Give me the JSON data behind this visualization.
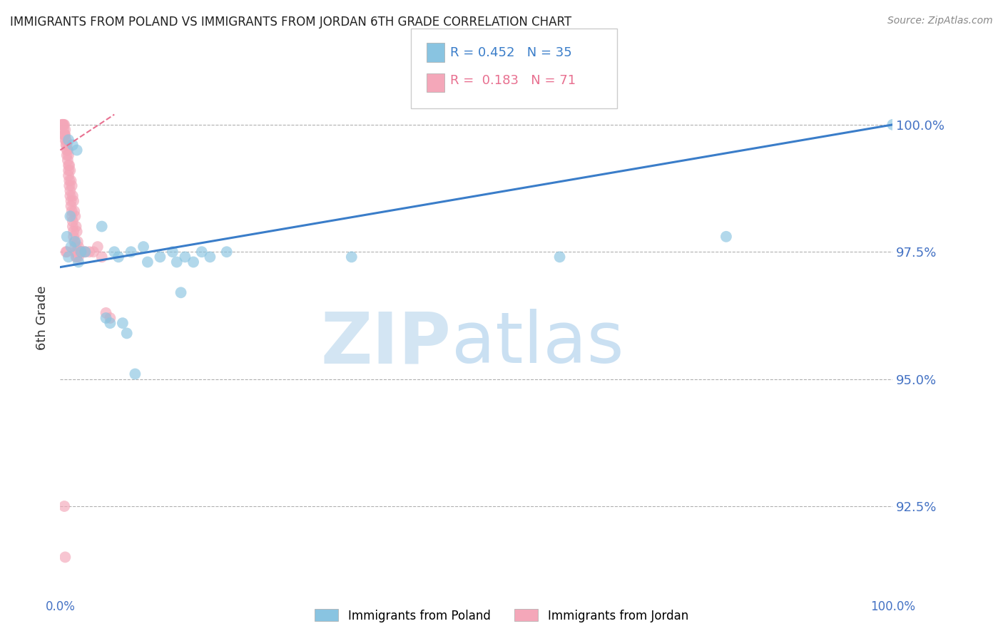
{
  "title": "IMMIGRANTS FROM POLAND VS IMMIGRANTS FROM JORDAN 6TH GRADE CORRELATION CHART",
  "source": "Source: ZipAtlas.com",
  "ylabel": "6th Grade",
  "ytick_labels": [
    "92.5%",
    "95.0%",
    "97.5%",
    "100.0%"
  ],
  "ytick_values": [
    92.5,
    95.0,
    97.5,
    100.0
  ],
  "xmin": 0.0,
  "xmax": 100.0,
  "ymin": 91.2,
  "ymax": 101.2,
  "blue_color": "#89c4e1",
  "pink_color": "#f4a7b9",
  "blue_line_color": "#3a7dc9",
  "pink_line_color": "#e87090",
  "axis_color": "#4472c4",
  "title_color": "#222222",
  "blue_scatter_x": [
    1.0,
    1.5,
    2.0,
    1.2,
    0.8,
    1.8,
    1.3,
    2.5,
    3.0,
    5.0,
    6.5,
    7.0,
    8.5,
    10.0,
    12.0,
    13.5,
    14.0,
    15.0,
    17.0,
    20.0,
    5.5,
    6.0,
    7.5,
    8.0,
    9.0,
    10.5,
    14.5,
    16.0,
    18.0,
    35.0,
    60.0,
    80.0,
    100.0,
    1.0,
    2.2
  ],
  "blue_scatter_y": [
    99.7,
    99.6,
    99.5,
    98.2,
    97.8,
    97.7,
    97.6,
    97.5,
    97.5,
    98.0,
    97.5,
    97.4,
    97.5,
    97.6,
    97.4,
    97.5,
    97.3,
    97.4,
    97.5,
    97.5,
    96.2,
    96.1,
    96.1,
    95.9,
    95.1,
    97.3,
    96.7,
    97.3,
    97.4,
    97.4,
    97.4,
    97.8,
    100.0,
    97.4,
    97.3
  ],
  "pink_scatter_x": [
    0.2,
    0.3,
    0.4,
    0.5,
    0.5,
    0.6,
    0.6,
    0.7,
    0.8,
    0.8,
    0.9,
    1.0,
    1.0,
    1.0,
    1.1,
    1.1,
    1.2,
    1.2,
    1.3,
    1.3,
    1.4,
    1.4,
    1.5,
    1.5,
    1.6,
    1.6,
    1.7,
    1.8,
    1.8,
    1.9,
    2.0,
    2.0,
    2.1,
    2.2,
    2.3,
    2.4,
    2.5,
    2.6,
    2.8,
    3.0,
    3.5,
    4.0,
    4.5,
    5.0,
    5.5,
    6.0,
    0.3,
    0.4,
    0.5,
    0.6,
    0.7,
    0.8,
    0.9,
    1.0,
    1.1,
    1.2,
    1.3,
    1.4,
    1.5,
    1.6,
    1.7,
    1.8,
    1.9,
    2.0,
    2.1,
    2.2,
    2.3,
    0.5,
    0.6,
    0.7,
    0.8
  ],
  "pink_scatter_y": [
    100.0,
    100.0,
    100.0,
    100.0,
    99.8,
    99.9,
    99.7,
    99.6,
    99.5,
    99.4,
    99.3,
    99.2,
    99.1,
    99.0,
    98.9,
    98.8,
    98.7,
    98.6,
    98.5,
    98.4,
    98.3,
    98.2,
    98.1,
    98.0,
    97.9,
    97.8,
    97.7,
    97.6,
    97.5,
    97.4,
    97.5,
    97.4,
    97.5,
    97.4,
    97.5,
    97.5,
    97.5,
    97.5,
    97.5,
    97.5,
    97.5,
    97.5,
    97.6,
    97.4,
    96.3,
    96.2,
    100.0,
    99.9,
    99.8,
    99.8,
    99.7,
    99.6,
    99.5,
    99.4,
    99.2,
    99.1,
    98.9,
    98.8,
    98.6,
    98.5,
    98.3,
    98.2,
    98.0,
    97.9,
    97.7,
    97.6,
    97.5,
    92.5,
    91.5,
    97.5,
    97.5
  ],
  "blue_trend_x": [
    0.0,
    100.0
  ],
  "blue_trend_y": [
    97.2,
    100.0
  ],
  "pink_trend_x": [
    0.0,
    6.5
  ],
  "pink_trend_y": [
    99.5,
    100.2
  ]
}
